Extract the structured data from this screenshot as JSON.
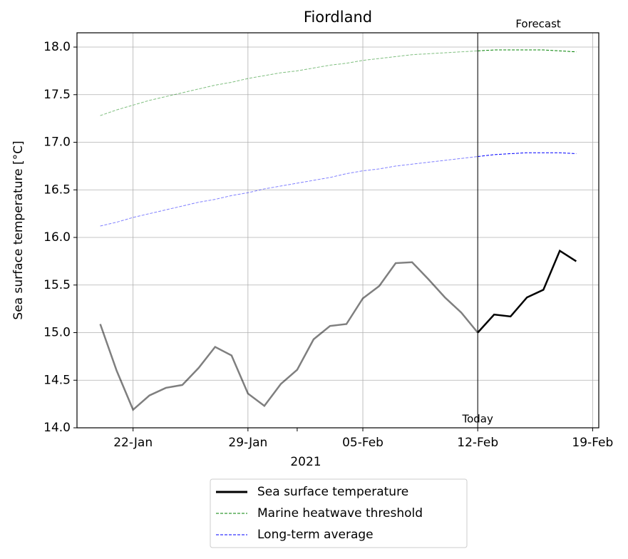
{
  "chart_data": {
    "type": "line",
    "title": "Fiordland",
    "ylabel": "Sea surface temperature [°C]",
    "xlabel": "2021",
    "x": [
      "2021-01-20",
      "2021-01-21",
      "2021-01-22",
      "2021-01-23",
      "2021-01-24",
      "2021-01-25",
      "2021-01-26",
      "2021-01-27",
      "2021-01-28",
      "2021-01-29",
      "2021-01-30",
      "2021-01-31",
      "2021-02-01",
      "2021-02-02",
      "2021-02-03",
      "2021-02-04",
      "2021-02-05",
      "2021-02-06",
      "2021-02-07",
      "2021-02-08",
      "2021-02-09",
      "2021-02-10",
      "2021-02-11",
      "2021-02-12",
      "2021-02-13",
      "2021-02-14",
      "2021-02-15",
      "2021-02-16",
      "2021-02-17",
      "2021-02-18"
    ],
    "series": [
      {
        "name": "Sea surface temperature",
        "color": "#000000",
        "width": 2.5,
        "dash": false,
        "values": [
          15.09,
          14.6,
          14.19,
          14.34,
          14.42,
          14.45,
          14.63,
          14.85,
          14.76,
          14.36,
          14.23,
          14.46,
          14.61,
          14.93,
          15.07,
          15.09,
          15.36,
          15.49,
          15.73,
          15.74,
          15.56,
          15.37,
          15.21,
          15.0,
          15.19,
          15.17,
          15.37,
          15.45,
          15.86,
          15.75
        ]
      },
      {
        "name": "Marine heatwave threshold",
        "color": "#008000",
        "width": 1,
        "dash": true,
        "values": [
          17.28,
          17.34,
          17.39,
          17.44,
          17.48,
          17.52,
          17.56,
          17.6,
          17.63,
          17.67,
          17.7,
          17.73,
          17.75,
          17.78,
          17.81,
          17.83,
          17.86,
          17.88,
          17.9,
          17.92,
          17.93,
          17.94,
          17.95,
          17.96,
          17.97,
          17.97,
          17.97,
          17.97,
          17.96,
          17.95
        ]
      },
      {
        "name": "Long-term average",
        "color": "#0000ff",
        "width": 1,
        "dash": true,
        "values": [
          16.12,
          16.16,
          16.21,
          16.25,
          16.29,
          16.33,
          16.37,
          16.4,
          16.44,
          16.47,
          16.51,
          16.54,
          16.57,
          16.6,
          16.63,
          16.67,
          16.7,
          16.72,
          16.75,
          16.77,
          16.79,
          16.81,
          16.83,
          16.85,
          16.87,
          16.88,
          16.89,
          16.89,
          16.89,
          16.88
        ]
      }
    ],
    "today": "2021-02-12",
    "today_label": "Today",
    "forecast_label": "Forecast",
    "past_opacity": 0.5,
    "xlim": [
      "2021-01-18T14:00",
      "2021-02-19T09:00"
    ],
    "xticks": [
      {
        "value": "2021-01-22",
        "label": "22-Jan"
      },
      {
        "value": "2021-01-29",
        "label": "29-Jan"
      },
      {
        "value": "2021-02-05",
        "label": "05-Feb"
      },
      {
        "value": "2021-02-12",
        "label": "12-Feb"
      },
      {
        "value": "2021-02-19",
        "label": "19-Feb"
      }
    ],
    "xminorticks": [
      "2021-02-01"
    ],
    "ylim": [
      14,
      18.15
    ],
    "yticks": [
      {
        "value": 14,
        "label": "14.0"
      },
      14.5,
      {
        "value": 15,
        "label": "15.0"
      },
      15.5,
      {
        "value": 16,
        "label": "16.0"
      },
      16.5,
      {
        "value": 17,
        "label": "17.0"
      },
      17.5,
      {
        "value": 18,
        "label": "18.0"
      }
    ],
    "grid": true,
    "legend": "below"
  }
}
